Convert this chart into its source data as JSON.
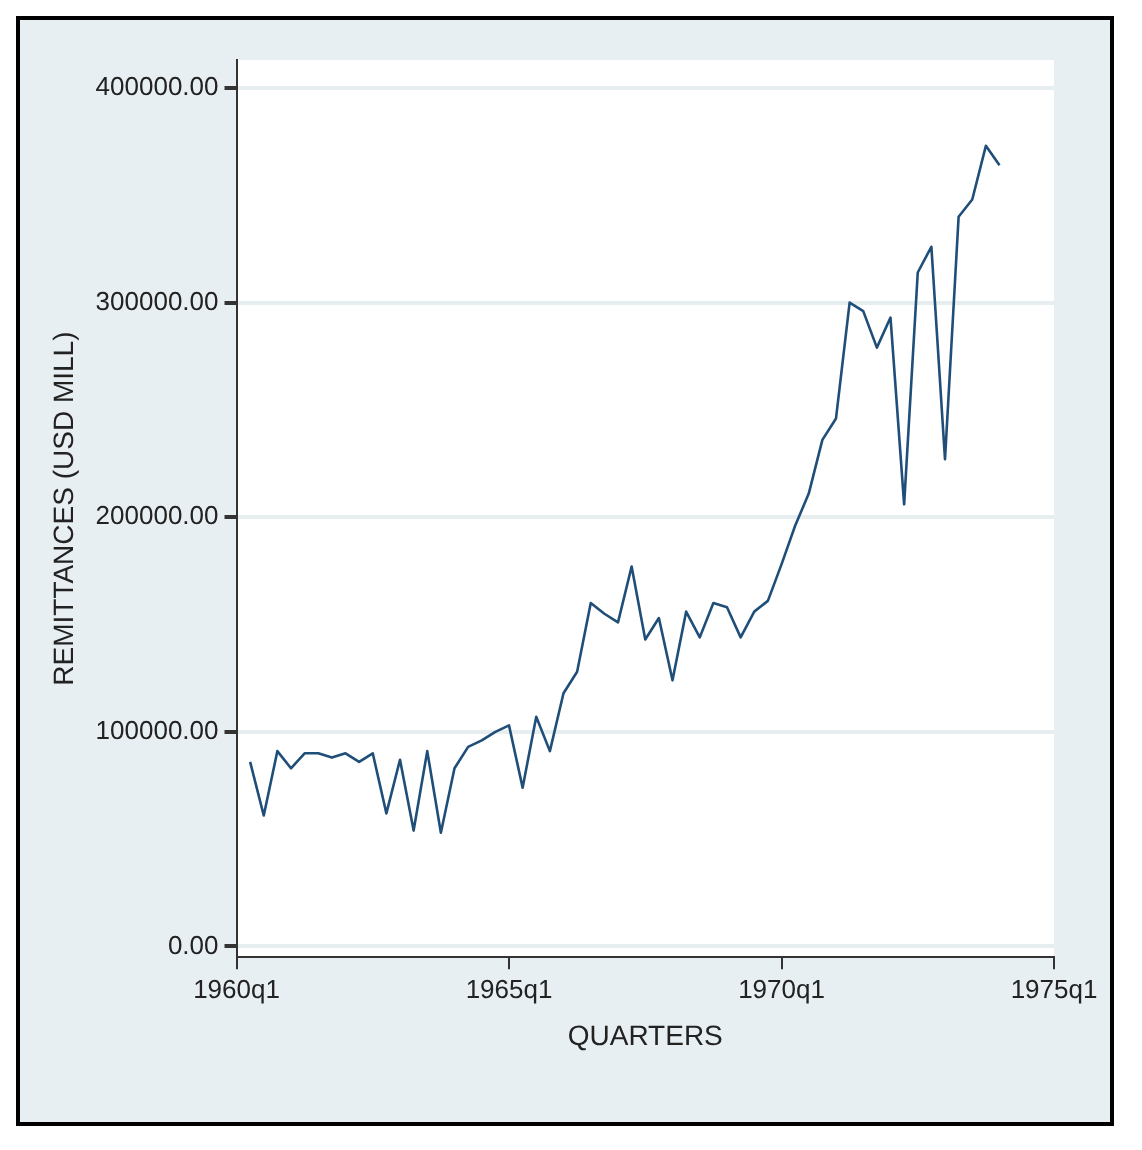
{
  "chart_data": {
    "type": "line",
    "xlabel": "QUARTERS",
    "ylabel": "REMITTANCES (USD MILL)",
    "categories": [
      "1960q1",
      null,
      null,
      null,
      null,
      null,
      null,
      null,
      null,
      null,
      null,
      null,
      null,
      null,
      null,
      null,
      null,
      null,
      null,
      null,
      "1965q1",
      null,
      null,
      null,
      null,
      null,
      null,
      null,
      null,
      null,
      null,
      null,
      null,
      null,
      null,
      null,
      null,
      null,
      null,
      null,
      "1970q1",
      null,
      null,
      null,
      null,
      null,
      null,
      null,
      null,
      null,
      null,
      null,
      null,
      null,
      null,
      null,
      null,
      null,
      null,
      null,
      "1975q1"
    ],
    "series": [
      {
        "color": "#1f4e79",
        "values": [
          null,
          86000,
          61000,
          91000,
          83000,
          90000,
          90000,
          88000,
          90000,
          86000,
          90000,
          62000,
          87000,
          54000,
          91000,
          53000,
          83000,
          93000,
          96000,
          100000,
          103000,
          74000,
          107000,
          91000,
          118000,
          128000,
          160000,
          155000,
          151000,
          177000,
          143000,
          153000,
          124000,
          156000,
          144000,
          160000,
          158000,
          144000,
          156000,
          161000,
          178000,
          196000,
          211000,
          236000,
          246000,
          300000,
          296000,
          279000,
          293000,
          206000,
          314000,
          326000,
          227000,
          340000,
          348000,
          373000,
          364000,
          null,
          null,
          null,
          null
        ]
      }
    ],
    "ylim": [
      -5000,
      413000
    ],
    "yticks": [
      {
        "value": 0,
        "label": "0.00"
      },
      {
        "value": 100000,
        "label": "100000.00"
      },
      {
        "value": 200000,
        "label": "200000.00"
      },
      {
        "value": 300000,
        "label": "300000.00"
      },
      {
        "value": 400000,
        "label": "400000.00"
      }
    ],
    "grid": "y",
    "legend": false,
    "marker": "none",
    "line_style": "solid"
  }
}
